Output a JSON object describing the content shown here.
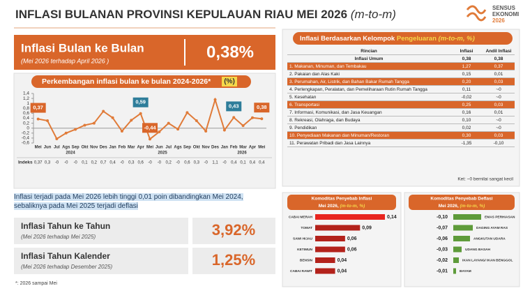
{
  "header": {
    "title": "INFLASI BULANAN PROVINSI KEPULAUAN RIAU MEI 2026",
    "title_suffix": "(m-to-m)",
    "logo": [
      "SENSUS",
      "EKONOMI",
      "2026"
    ]
  },
  "mtm": {
    "label": "Inflasi Bulan ke Bulan",
    "sub": "(Mei 2026 terhadap April 2026 )",
    "value": "0,38%"
  },
  "note": "Inflasi terjadi  pada Mei 2026 lebih tinggi 0,01 poin dibandingkan Mei 2024, sebaliknya pada Mei 2025 terjadi deflasi",
  "yoy": {
    "label": "Inflasi Tahun ke Tahun",
    "sub": "(Mei 2026 terhadap Mei 2025)",
    "value": "3,92%"
  },
  "ytd": {
    "label": "Inflasi Tahun Kalender",
    "sub": "(Mei 2026 terhadap Desember 2025)",
    "value": "1,25%"
  },
  "footnote": "*: 2026 sampai Mei",
  "table": {
    "heading": [
      "Inflasi Berdasarkan Kelompok",
      "Pengeluaran",
      "(m-to-m, %)"
    ],
    "columns": [
      "Rincian",
      "Inflasi",
      "Andil Inflasi"
    ],
    "rows": [
      [
        "Inflasi Umum",
        "0,38",
        "0,38"
      ],
      [
        "1.   Makanan, Minuman, dan Tembakau",
        "1,27",
        "0,37"
      ],
      [
        "2.   Pakaian dan Alas Kaki",
        "0,15",
        "0,01"
      ],
      [
        "3.   Perumahan, Air, Listrik, dan Bahan Bakar Rumah Tangga",
        "0,20",
        "0,03"
      ],
      [
        "4.   Perlengkapan, Peralatan, dan Pemeliharaan Rutin Rumah Tangga",
        "0,11",
        "~0"
      ],
      [
        "5.   Kesehatan",
        "-0,02",
        "~0"
      ],
      [
        "6.   Transportasi",
        "0,25",
        "0,03"
      ],
      [
        "7.   Informasi, Komunikasi, dan Jasa Keuangan",
        "0,16",
        "0,01"
      ],
      [
        "8.   Rekreasi, Olahraga, dan Budaya",
        "0,10",
        "~0"
      ],
      [
        "9.   Pendidikan",
        "0,02",
        "~0"
      ],
      [
        "10. Penyediaan Makanan dan Minuman/Restoran",
        "0,30",
        "0,03"
      ],
      [
        "11. Perawatan Pribadi dan Jasa Lainnya",
        "-1,35",
        "-0,10"
      ]
    ],
    "highlight_color": "#d9662a",
    "highlighted_rows": [
      1,
      3,
      6,
      10
    ],
    "note": "Ket: ~0 bernilai sangat kecil"
  },
  "chart_data": [
    {
      "type": "line",
      "title": "Perkembangan inflasi bulan ke bulan 2024-2026*",
      "unit": "(%)",
      "color": "#e07b39",
      "categories": [
        "Mei",
        "Jun",
        "Jul",
        "Ags",
        "Sep",
        "Okt",
        "Nov",
        "Des",
        "Jan",
        "Feb",
        "Mar",
        "Apr",
        "Mei",
        "Jun",
        "Jul",
        "Ags",
        "Sep",
        "Okt",
        "Nov",
        "Des",
        "Jan",
        "Feb",
        "Mar",
        "Apr",
        "Mei"
      ],
      "years": [
        "2024",
        "2025",
        "2026"
      ],
      "values": [
        0.37,
        0.3,
        -0.43,
        -0.2,
        -0.05,
        0.12,
        0.2,
        0.68,
        0.42,
        -0.12,
        0.32,
        0.59,
        -0.44,
        -0.15,
        0.2,
        -0.04,
        0.63,
        0.3,
        -0.12,
        1.15,
        -0.08,
        0.43,
        0.1,
        0.42,
        0.38
      ],
      "row_label": "Indeks",
      "value_labels": [
        "0,37",
        "0,3",
        "-0",
        "-0",
        "-0",
        "0,1",
        "0,2",
        "0,7",
        "0,4",
        "-0",
        "0,3",
        "0,6",
        "-0",
        "-0",
        "0,2",
        "-0",
        "0,6",
        "0,3",
        "-0",
        "1,1",
        "-0",
        "0,4",
        "0,1",
        "0,4",
        "0,4"
      ],
      "callouts": [
        {
          "value": 0.37,
          "label": "0,37",
          "color": "#d9662a"
        },
        {
          "value": 0.59,
          "label": "0,59",
          "color": "#2e7d9a"
        },
        {
          "value": -0.44,
          "label": "-0,44",
          "color": "#d9662a"
        },
        {
          "value": 0.43,
          "label": "0,43",
          "color": "#2e7d9a"
        },
        {
          "value": 0.38,
          "label": "0,38",
          "color": "#d9662a"
        }
      ],
      "ylim": [
        -0.6,
        1.4
      ],
      "yticks": [
        {
          "value": -0.6,
          "label": "-0,6"
        },
        {
          "value": -0.4,
          "label": "-0,4"
        },
        {
          "value": -0.2,
          "label": "-0,2"
        },
        0,
        {
          "value": 0.2,
          "label": "0,2"
        },
        {
          "value": 0.4,
          "label": "0,4"
        },
        {
          "value": 0.6,
          "label": "0,6"
        },
        {
          "value": 0.8,
          "label": "0,8"
        },
        {
          "value": 1,
          "label": "1"
        },
        {
          "value": 1.2,
          "label": "1,2"
        },
        {
          "value": 1.4,
          "label": "1,4"
        }
      ],
      "grid": false
    },
    {
      "type": "bar",
      "title": [
        "Komoditas Penyebab Inflasi",
        "Mei 2026,",
        "(m-to-m, %)"
      ],
      "categories": [
        "CABAI MERAH",
        "TOMAT",
        "SAWI HIJAU",
        "KETIMUN",
        "BENSIN",
        "CABAI RAWIT"
      ],
      "values": [
        0.14,
        0.09,
        0.06,
        0.06,
        0.04,
        0.04
      ],
      "value_labels": [
        "0,14",
        "0,09",
        "0,06",
        "0,06",
        "0,04",
        "0,04"
      ],
      "colors": [
        "#e8251f",
        "#b3221b",
        "#b3221b",
        "#b3221b",
        "#b3221b",
        "#b3221b"
      ],
      "xlim": [
        0,
        0.14
      ]
    },
    {
      "type": "bar",
      "title": [
        "Komoditas Penyebab Deflasi",
        "Mei 2026,",
        "(m-to-m, %)"
      ],
      "categories": [
        "EMAS PERHIASAN",
        "DAGING AYAM RAS",
        "ANGKUTAN UDARA",
        "UDANG BASAH",
        "IKAN LAYANG/ IKAN BENGGOL",
        "BAYAM"
      ],
      "values": [
        -0.1,
        -0.07,
        -0.06,
        -0.03,
        -0.02,
        -0.01
      ],
      "value_labels": [
        "-0,10",
        "-0,07",
        "-0,06",
        "-0,03",
        "-0,02",
        "-0,01"
      ],
      "colors": [
        "#5e9b3a",
        "#5e9b3a",
        "#5e9b3a",
        "#5e9b3a",
        "#5e9b3a",
        "#5e9b3a"
      ],
      "xlim": [
        0,
        -0.1
      ]
    }
  ]
}
